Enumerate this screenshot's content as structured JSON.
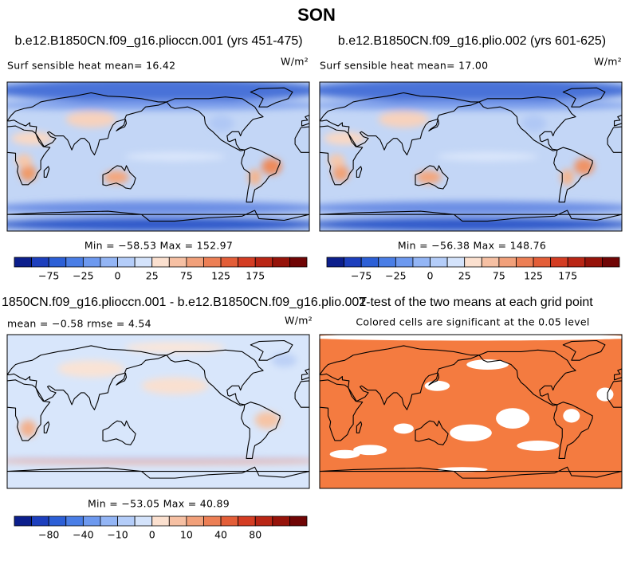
{
  "title": "SON",
  "colorbar_colors": [
    "#0c1f8c",
    "#1d3fbd",
    "#2c5fd6",
    "#4a7ee6",
    "#6d99ef",
    "#93b5f5",
    "#b4cdf9",
    "#d4e3fb",
    "#fbe0cf",
    "#f6c0a3",
    "#f1a07a",
    "#ec7f55",
    "#e35e38",
    "#d43d23",
    "#b92615",
    "#96130a",
    "#700505"
  ],
  "panels": [
    {
      "title": "b.e12.B1850CN.f09_g16.plioccn.001 (yrs 451-475)",
      "label": "Surf sensible heat   mean=  16.42",
      "units": "W/m²",
      "stats": "Min = −58.53 Max = 152.97",
      "colorbar_labels": [
        "−75",
        "−25",
        "0",
        "25",
        "75",
        "125",
        "175"
      ]
    },
    {
      "title": "b.e12.B1850CN.f09_g16.plio.002 (yrs 601-625)",
      "label": "Surf sensible heat   mean=  17.00",
      "units": "W/m²",
      "stats": "Min = −56.38 Max = 148.76",
      "colorbar_labels": [
        "−75",
        "−25",
        "0",
        "25",
        "75",
        "125",
        "175"
      ]
    },
    {
      "title": "1850CN.f09_g16.plioccn.001 - b.e12.B1850CN.f09_g16.plio.002",
      "label": "mean =  −0.58    rmse =   4.54",
      "units": "W/m²",
      "stats": "Min = −53.05 Max = 40.89",
      "colorbar_labels": [
        "−80",
        "−40",
        "−10",
        "0",
        "10",
        "40",
        "80"
      ]
    },
    {
      "title": "T-test of the two means at each grid point",
      "label": "Colored cells are significant at the 0.05 level"
    }
  ]
}
